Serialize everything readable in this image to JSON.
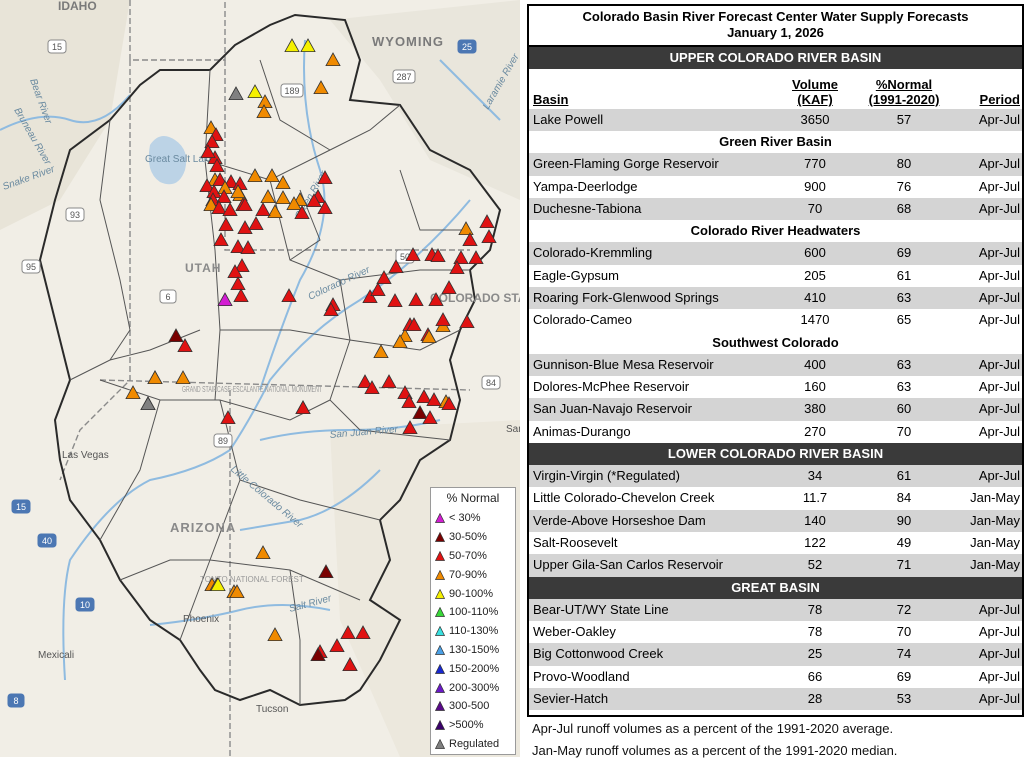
{
  "map": {
    "state_labels": [
      "IDAHO",
      "WYOMING",
      "UTAH",
      "COLORADO STATE",
      "ARIZONA"
    ],
    "place_labels": [
      "Great Salt Lake",
      "Las Vegas",
      "Phoenix",
      "Tucson",
      "Mexicali",
      "GRAND STAIRCASE-ESCALANTE NATIONAL MONUMENT",
      "TONTO NATIONAL FOREST",
      "Santa"
    ],
    "river_labels": [
      "Bruneau River",
      "Bear River",
      "Green River",
      "Colorado River",
      "San Juan River",
      "Little Colorado River",
      "Laramie River",
      "Salt River",
      "Snake River"
    ],
    "highway_shields": [
      "15",
      "25",
      "287",
      "189",
      "93",
      "95",
      "6",
      "50",
      "84",
      "89",
      "40",
      "10",
      "8",
      "15"
    ],
    "legend": {
      "title": "% Normal",
      "items": [
        {
          "label": "< 30%",
          "color": "#d21cd2"
        },
        {
          "label": "30-50%",
          "color": "#7a0000"
        },
        {
          "label": "50-70%",
          "color": "#e01212"
        },
        {
          "label": "70-90%",
          "color": "#f08a00"
        },
        {
          "label": "90-100%",
          "color": "#f5f000"
        },
        {
          "label": "100-110%",
          "color": "#38d838"
        },
        {
          "label": "110-130%",
          "color": "#38e0e0"
        },
        {
          "label": "130-150%",
          "color": "#4aa0e6"
        },
        {
          "label": "150-200%",
          "color": "#1828d0"
        },
        {
          "label": "200-300%",
          "color": "#6a18c8"
        },
        {
          "label": "300-500",
          "color": "#5a0a8a"
        },
        {
          "label": ">500%",
          "color": "#3a006a"
        },
        {
          "label": "Regulated",
          "color": "#808080"
        }
      ]
    },
    "markers": [
      {
        "c": "#f5f000"
      },
      {
        "c": "#f5f000"
      },
      {
        "c": "#f08a00"
      },
      {
        "c": "#f08a00"
      },
      {
        "c": "#808080"
      },
      {
        "c": "#f5f000"
      },
      {
        "c": "#f08a00"
      },
      {
        "c": "#f08a00"
      },
      {
        "c": "#f08a00"
      },
      {
        "c": "#e01212"
      },
      {
        "c": "#e01212"
      },
      {
        "c": "#e01212"
      },
      {
        "c": "#e01212"
      },
      {
        "c": "#e01212"
      },
      {
        "c": "#f08a00"
      },
      {
        "c": "#e01212"
      },
      {
        "c": "#e01212"
      },
      {
        "c": "#e01212"
      },
      {
        "c": "#e01212"
      },
      {
        "c": "#e01212"
      },
      {
        "c": "#f08a00"
      },
      {
        "c": "#e01212"
      },
      {
        "c": "#e01212"
      },
      {
        "c": "#f08a00"
      },
      {
        "c": "#f08a00"
      },
      {
        "c": "#e01212"
      },
      {
        "c": "#e01212"
      },
      {
        "c": "#e01212"
      },
      {
        "c": "#f08a00"
      },
      {
        "c": "#f08a00"
      },
      {
        "c": "#f08a00"
      },
      {
        "c": "#f08a00"
      },
      {
        "c": "#f08a00"
      },
      {
        "c": "#e01212"
      },
      {
        "c": "#e01212"
      },
      {
        "c": "#f08a00"
      },
      {
        "c": "#f08a00"
      },
      {
        "c": "#f08a00"
      },
      {
        "c": "#f08a00"
      },
      {
        "c": "#e01212"
      },
      {
        "c": "#e01212"
      },
      {
        "c": "#e01212"
      },
      {
        "c": "#e01212"
      },
      {
        "c": "#e01212"
      },
      {
        "c": "#e01212"
      },
      {
        "c": "#e01212"
      },
      {
        "c": "#e01212"
      },
      {
        "c": "#e01212"
      },
      {
        "c": "#e01212"
      },
      {
        "c": "#e01212"
      },
      {
        "c": "#e01212"
      },
      {
        "c": "#e01212"
      },
      {
        "c": "#e01212"
      },
      {
        "c": "#e01212"
      },
      {
        "c": "#d21cd2"
      },
      {
        "c": "#e01212"
      },
      {
        "c": "#e01212"
      },
      {
        "c": "#7a0000"
      },
      {
        "c": "#e01212"
      },
      {
        "c": "#f08a00"
      },
      {
        "c": "#f08a00"
      },
      {
        "c": "#f08a00"
      },
      {
        "c": "#f08a00"
      },
      {
        "c": "#f08a00"
      },
      {
        "c": "#f08a00"
      },
      {
        "c": "#e01212"
      },
      {
        "c": "#e01212"
      },
      {
        "c": "#e01212"
      },
      {
        "c": "#e01212"
      },
      {
        "c": "#e01212"
      },
      {
        "c": "#e01212"
      },
      {
        "c": "#e01212"
      },
      {
        "c": "#e01212"
      },
      {
        "c": "#e01212"
      },
      {
        "c": "#e01212"
      },
      {
        "c": "#e01212"
      },
      {
        "c": "#e01212"
      },
      {
        "c": "#e01212"
      },
      {
        "c": "#e01212"
      },
      {
        "c": "#e01212"
      },
      {
        "c": "#f08a00"
      },
      {
        "c": "#f08a00"
      },
      {
        "c": "#e01212"
      },
      {
        "c": "#e01212"
      },
      {
        "c": "#e01212"
      },
      {
        "c": "#e01212"
      },
      {
        "c": "#e01212"
      },
      {
        "c": "#e01212"
      },
      {
        "c": "#f08a00"
      },
      {
        "c": "#f08a00"
      },
      {
        "c": "#e01212"
      },
      {
        "c": "#e01212"
      },
      {
        "c": "#f08a00"
      },
      {
        "c": "#e01212"
      },
      {
        "c": "#e01212"
      },
      {
        "c": "#e01212"
      },
      {
        "c": "#f08a00"
      },
      {
        "c": "#e01212"
      },
      {
        "c": "#e01212"
      },
      {
        "c": "#e01212"
      },
      {
        "c": "#e01212"
      },
      {
        "c": "#e01212"
      },
      {
        "c": "#e01212"
      },
      {
        "c": "#7a0000"
      },
      {
        "c": "#e01212"
      },
      {
        "c": "#f08a00"
      },
      {
        "c": "#e01212"
      },
      {
        "c": "#808080"
      },
      {
        "c": "#f08a00"
      },
      {
        "c": "#e01212"
      },
      {
        "c": "#e01212"
      },
      {
        "c": "#e01212"
      },
      {
        "c": "#f08a00"
      },
      {
        "c": "#f08a00"
      },
      {
        "c": "#7a0000"
      },
      {
        "c": "#f5f000"
      },
      {
        "c": "#f08a00"
      },
      {
        "c": "#f08a00"
      },
      {
        "c": "#e01212"
      },
      {
        "c": "#e01212"
      },
      {
        "c": "#e01212"
      },
      {
        "c": "#e01212"
      },
      {
        "c": "#e01212"
      },
      {
        "c": "#7a0000"
      },
      {
        "c": "#e01212"
      }
    ]
  },
  "table": {
    "title_line1": "Colorado Basin River Forecast Center Water Supply Forecasts",
    "title_line2": "January 1, 2026",
    "headers": {
      "basin": "Basin",
      "volume_l1": "Volume",
      "volume_l2": "(KAF)",
      "pct_l1": "%Normal",
      "pct_l2": "(1991-2020)",
      "period": "Period"
    },
    "sections": [
      {
        "title": "UPPER COLORADO RIVER BASIN",
        "style": "dark",
        "show_header": true,
        "rows": [
          {
            "basin": "Lake Powell",
            "volume": "3650",
            "pct": "57",
            "period": "Apr-Jul"
          }
        ]
      },
      {
        "title": "Green River Basin",
        "style": "sub",
        "rows": [
          {
            "basin": "Green-Flaming Gorge Reservoir",
            "volume": "770",
            "pct": "80",
            "period": "Apr-Jul"
          },
          {
            "basin": "Yampa-Deerlodge",
            "volume": "900",
            "pct": "76",
            "period": "Apr-Jul"
          },
          {
            "basin": "Duchesne-Tabiona",
            "volume": "70",
            "pct": "68",
            "period": "Apr-Jul"
          }
        ]
      },
      {
        "title": "Colorado River Headwaters",
        "style": "sub",
        "rows": [
          {
            "basin": "Colorado-Kremmling",
            "volume": "600",
            "pct": "69",
            "period": "Apr-Jul"
          },
          {
            "basin": "Eagle-Gypsum",
            "volume": "205",
            "pct": "61",
            "period": "Apr-Jul"
          },
          {
            "basin": "Roaring Fork-Glenwood Springs",
            "volume": "410",
            "pct": "63",
            "period": "Apr-Jul"
          },
          {
            "basin": "Colorado-Cameo",
            "volume": "1470",
            "pct": "65",
            "period": "Apr-Jul"
          }
        ]
      },
      {
        "title": "Southwest Colorado",
        "style": "sub",
        "rows": [
          {
            "basin": "Gunnison-Blue Mesa Reservoir",
            "volume": "400",
            "pct": "63",
            "period": "Apr-Jul"
          },
          {
            "basin": "Dolores-McPhee Reservoir",
            "volume": "160",
            "pct": "63",
            "period": "Apr-Jul"
          },
          {
            "basin": "San Juan-Navajo Reservoir",
            "volume": "380",
            "pct": "60",
            "period": "Apr-Jul"
          },
          {
            "basin": "Animas-Durango",
            "volume": "270",
            "pct": "70",
            "period": "Apr-Jul"
          }
        ]
      },
      {
        "title": "LOWER COLORADO RIVER BASIN",
        "style": "dark",
        "rows": [
          {
            "basin": "Virgin-Virgin (*Regulated)",
            "volume": "34",
            "pct": "61",
            "period": "Apr-Jul"
          },
          {
            "basin": "Little Colorado-Chevelon Creek",
            "volume": "11.7",
            "pct": "84",
            "period": "Jan-May"
          },
          {
            "basin": "Verde-Above Horseshoe Dam",
            "volume": "140",
            "pct": "90",
            "period": "Jan-May"
          },
          {
            "basin": "Salt-Roosevelt",
            "volume": "122",
            "pct": "49",
            "period": "Jan-May"
          },
          {
            "basin": "Upper Gila-San Carlos Reservoir",
            "volume": "52",
            "pct": "71",
            "period": "Jan-May"
          }
        ]
      },
      {
        "title": "GREAT BASIN",
        "style": "dark",
        "rows": [
          {
            "basin": "Bear-UT/WY State Line",
            "volume": "78",
            "pct": "72",
            "period": "Apr-Jul"
          },
          {
            "basin": "Weber-Oakley",
            "volume": "78",
            "pct": "70",
            "period": "Apr-Jul"
          },
          {
            "basin": "Big Cottonwood Creek",
            "volume": "25",
            "pct": "74",
            "period": "Apr-Jul"
          },
          {
            "basin": "Provo-Woodland",
            "volume": "66",
            "pct": "69",
            "period": "Apr-Jul"
          },
          {
            "basin": "Sevier-Hatch",
            "volume": "28",
            "pct": "53",
            "period": "Apr-Jul"
          }
        ]
      }
    ]
  },
  "footnotes": [
    "Apr-Jul runoff volumes as a percent of the 1991-2020 average.",
    "Jan-May runoff volumes as a percent of the 1991-2020 median."
  ]
}
